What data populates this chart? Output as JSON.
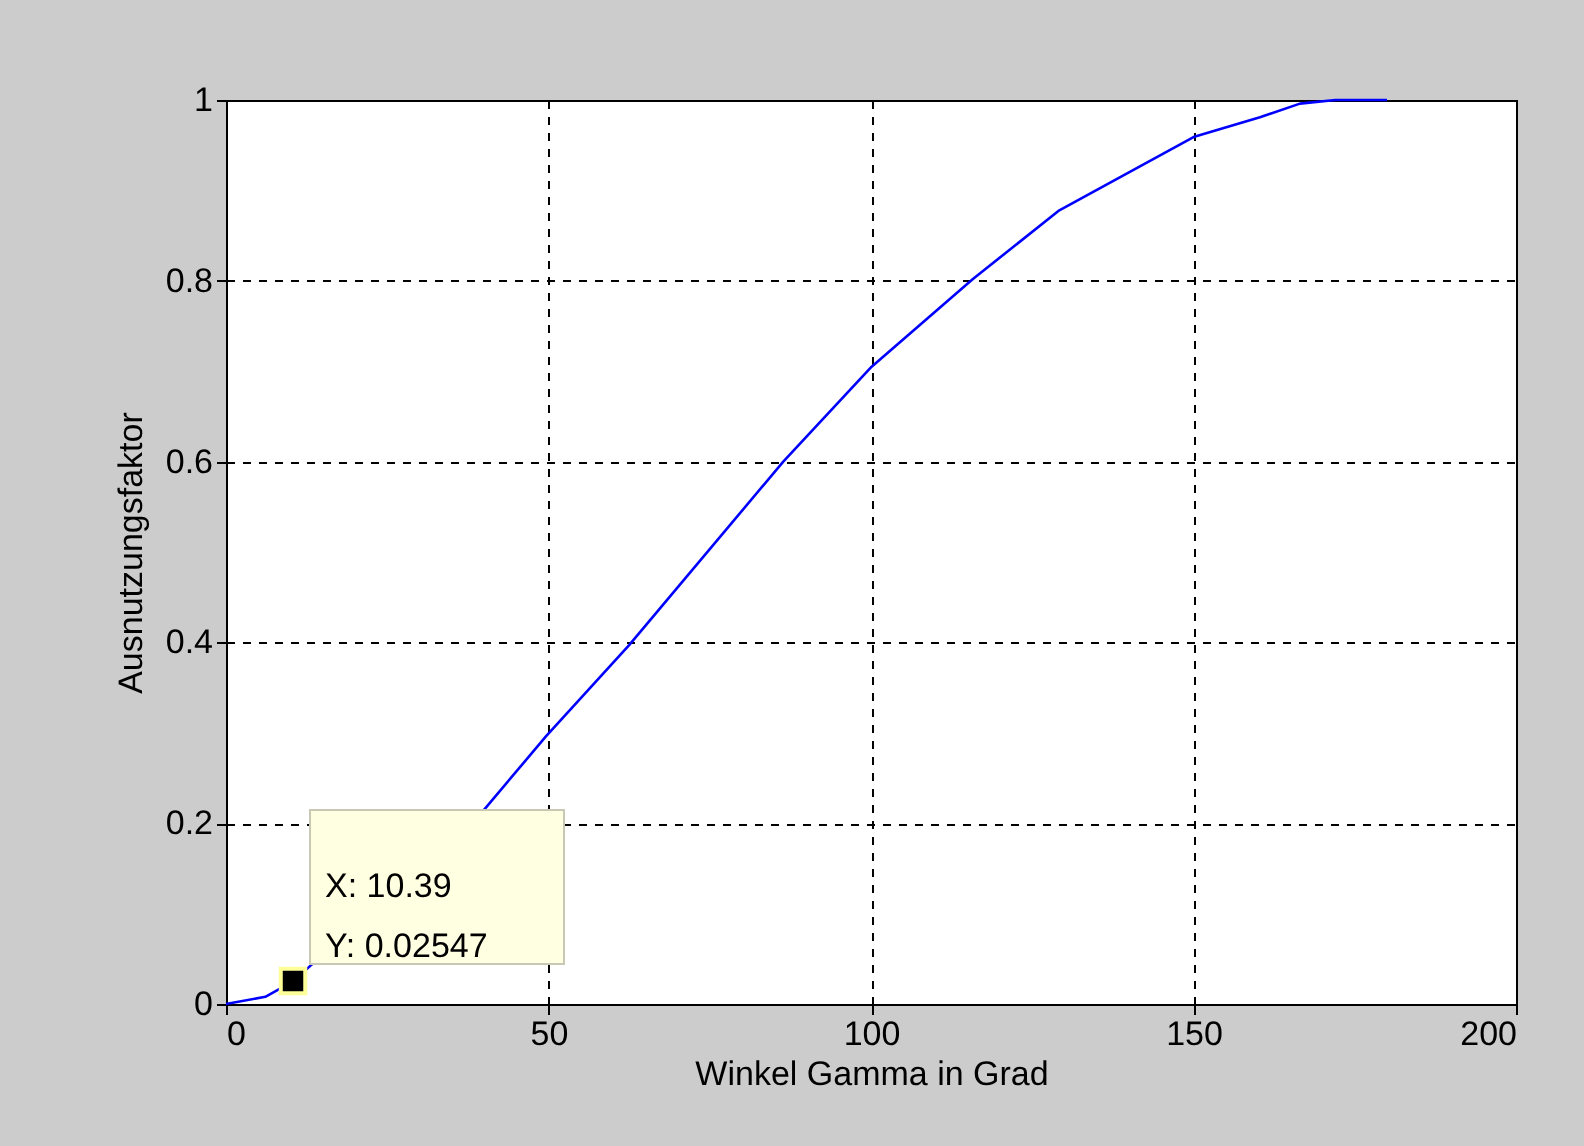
{
  "chart_data": {
    "type": "line",
    "xlabel": "Winkel Gamma in Grad",
    "ylabel": "Ausnutzungsfaktor",
    "series": [
      {
        "color": "#0000ff",
        "x": [
          0,
          6.1,
          10.39,
          39.9,
          49.6,
          62.5,
          86.4,
          100.1,
          115.8,
          129.2,
          150,
          160.3,
          166.5,
          172,
          180
        ],
        "values": [
          0,
          0.008,
          0.025,
          0.214,
          0.296,
          0.397,
          0.6,
          0.705,
          0.802,
          0.878,
          0.959,
          0.981,
          0.996,
          1,
          1
        ]
      }
    ],
    "xlim": [
      0,
      200
    ],
    "xticks": [
      0,
      50,
      100,
      150,
      200
    ],
    "ylim": [
      0,
      1
    ],
    "yticks": [
      0,
      0.2,
      0.4,
      0.6,
      0.8,
      1
    ],
    "grid": true,
    "line_style": "solid",
    "marker": "none",
    "annotations": [
      {
        "text": "X: 10.39\nY: 0.02547",
        "x": 10.39,
        "y": 0.02547
      }
    ]
  }
}
